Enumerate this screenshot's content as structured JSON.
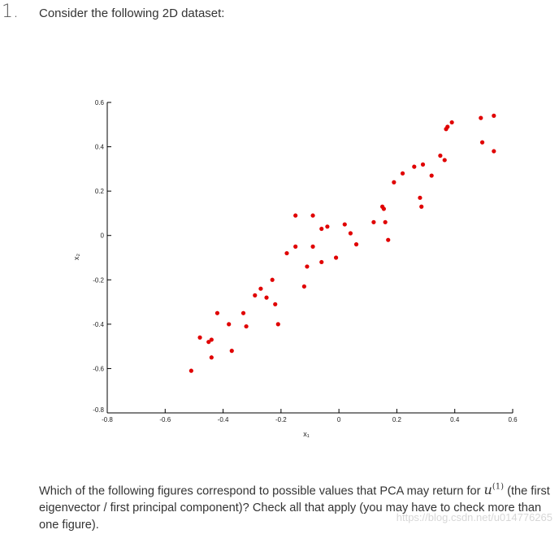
{
  "question": {
    "number": "1.",
    "title": "Consider the following 2D dataset:",
    "prompt_before": "Which of the following figures correspond to possible values that PCA may return for",
    "variable": "u",
    "superscript": "(1)",
    "prompt_after": "(the first eigenvector / first principal component)? Check all that apply (you may have to check more than one figure)."
  },
  "watermark": "https://blog.csdn.net/u014776265",
  "chart_data": {
    "type": "scatter",
    "title": "",
    "xlabel": "x₁",
    "ylabel": "x₂",
    "xlim": [
      -0.8,
      0.6
    ],
    "ylim": [
      -0.8,
      0.6
    ],
    "xticks": [
      "-0.8",
      "-0.6",
      "-0.4",
      "-0.2",
      "0",
      "0.2",
      "0.4",
      "0.6"
    ],
    "yticks": [
      "-0.8",
      "-0.6",
      "-0.4",
      "-0.2",
      "0",
      "0.2",
      "0.4",
      "0.6"
    ],
    "grid": false,
    "marker_color": "#e00000",
    "points": [
      [
        -0.51,
        -0.61
      ],
      [
        -0.48,
        -0.46
      ],
      [
        -0.45,
        -0.48
      ],
      [
        -0.44,
        -0.47
      ],
      [
        -0.44,
        -0.55
      ],
      [
        -0.42,
        -0.35
      ],
      [
        -0.38,
        -0.4
      ],
      [
        -0.37,
        -0.52
      ],
      [
        -0.33,
        -0.35
      ],
      [
        -0.32,
        -0.41
      ],
      [
        -0.29,
        -0.27
      ],
      [
        -0.27,
        -0.24
      ],
      [
        -0.25,
        -0.28
      ],
      [
        -0.23,
        -0.2
      ],
      [
        -0.22,
        -0.31
      ],
      [
        -0.21,
        -0.4
      ],
      [
        -0.18,
        -0.08
      ],
      [
        -0.15,
        0.09
      ],
      [
        -0.15,
        -0.05
      ],
      [
        -0.12,
        -0.23
      ],
      [
        -0.11,
        -0.14
      ],
      [
        -0.09,
        0.09
      ],
      [
        -0.09,
        -0.05
      ],
      [
        -0.06,
        0.03
      ],
      [
        -0.06,
        -0.12
      ],
      [
        -0.04,
        0.04
      ],
      [
        -0.01,
        -0.1
      ],
      [
        0.02,
        0.05
      ],
      [
        0.04,
        0.01
      ],
      [
        0.06,
        -0.04
      ],
      [
        0.12,
        0.06
      ],
      [
        0.15,
        0.13
      ],
      [
        0.155,
        0.12
      ],
      [
        0.16,
        0.06
      ],
      [
        0.17,
        -0.02
      ],
      [
        0.19,
        0.24
      ],
      [
        0.22,
        0.28
      ],
      [
        0.26,
        0.31
      ],
      [
        0.28,
        0.17
      ],
      [
        0.285,
        0.13
      ],
      [
        0.29,
        0.32
      ],
      [
        0.32,
        0.27
      ],
      [
        0.35,
        0.36
      ],
      [
        0.365,
        0.34
      ],
      [
        0.37,
        0.48
      ],
      [
        0.375,
        0.49
      ],
      [
        0.39,
        0.51
      ],
      [
        0.49,
        0.53
      ],
      [
        0.495,
        0.42
      ],
      [
        0.535,
        0.54
      ],
      [
        0.535,
        0.38
      ]
    ]
  }
}
